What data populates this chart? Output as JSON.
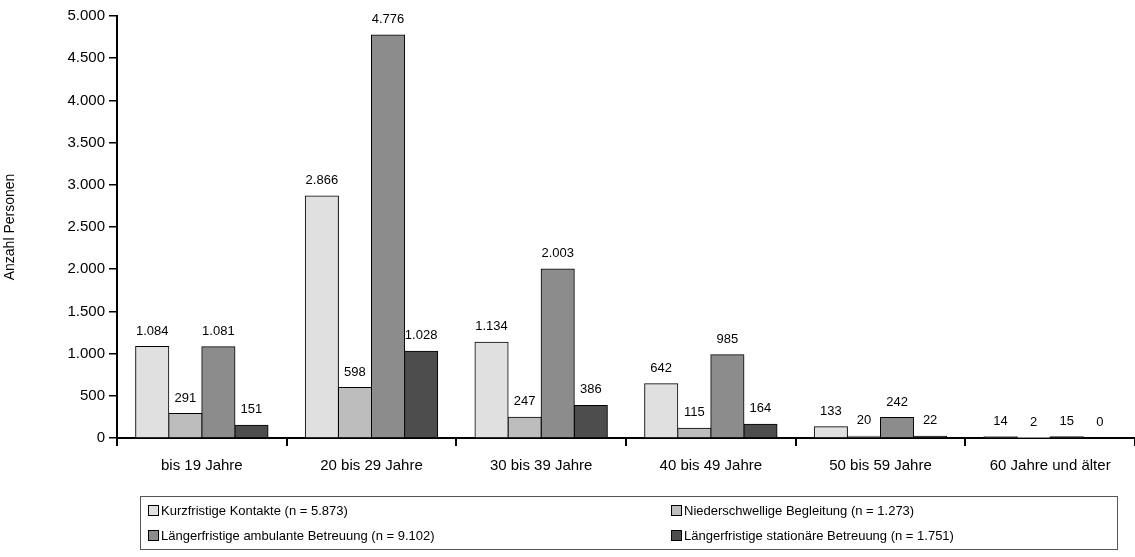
{
  "chart_data": {
    "type": "bar",
    "ylabel": "Anzahl Personen",
    "categories": [
      "bis 19 Jahre",
      "20 bis 29 Jahre",
      "30 bis 39 Jahre",
      "40 bis 49 Jahre",
      "50 bis 59 Jahre",
      "60 Jahre und älter"
    ],
    "series": [
      {
        "name": "Kurzfristige Kontakte (n = 5.873)",
        "color": "#e0e0e0",
        "values": [
          1084,
          2866,
          1134,
          642,
          133,
          14
        ],
        "value_labels": [
          "1.084",
          "2.866",
          "1.134",
          "642",
          "133",
          "14"
        ]
      },
      {
        "name": "Niederschwellige Begleitung (n = 1.273)",
        "color": "#bdbdbd",
        "values": [
          291,
          598,
          247,
          115,
          20,
          2
        ],
        "value_labels": [
          "291",
          "598",
          "247",
          "115",
          "20",
          "2"
        ]
      },
      {
        "name": "Längerfristige ambulante Betreuung (n = 9.102)",
        "color": "#8c8c8c",
        "values": [
          1081,
          4776,
          2003,
          985,
          242,
          15
        ],
        "value_labels": [
          "1.081",
          "4.776",
          "2.003",
          "985",
          "242",
          "15"
        ]
      },
      {
        "name": "Längerfristige stationäre Betreuung (n = 1.751)",
        "color": "#4d4d4d",
        "values": [
          151,
          1028,
          386,
          164,
          22,
          0
        ],
        "value_labels": [
          "151",
          "1.028",
          "386",
          "164",
          "22",
          "0"
        ]
      }
    ],
    "ylim": [
      0,
      5000
    ],
    "yticks": [
      0,
      500,
      {
        "value": 1000,
        "label": "1.000"
      },
      {
        "value": 1500,
        "label": "1.500"
      },
      {
        "value": 2000,
        "label": "2.000"
      },
      {
        "value": 2500,
        "label": "2.500"
      },
      {
        "value": 3000,
        "label": "3.000"
      },
      {
        "value": 3500,
        "label": "3.500"
      },
      {
        "value": 4000,
        "label": "4.000"
      },
      {
        "value": 4500,
        "label": "4.500"
      },
      {
        "value": 5000,
        "label": "5.000"
      }
    ],
    "legend": "bottom"
  }
}
